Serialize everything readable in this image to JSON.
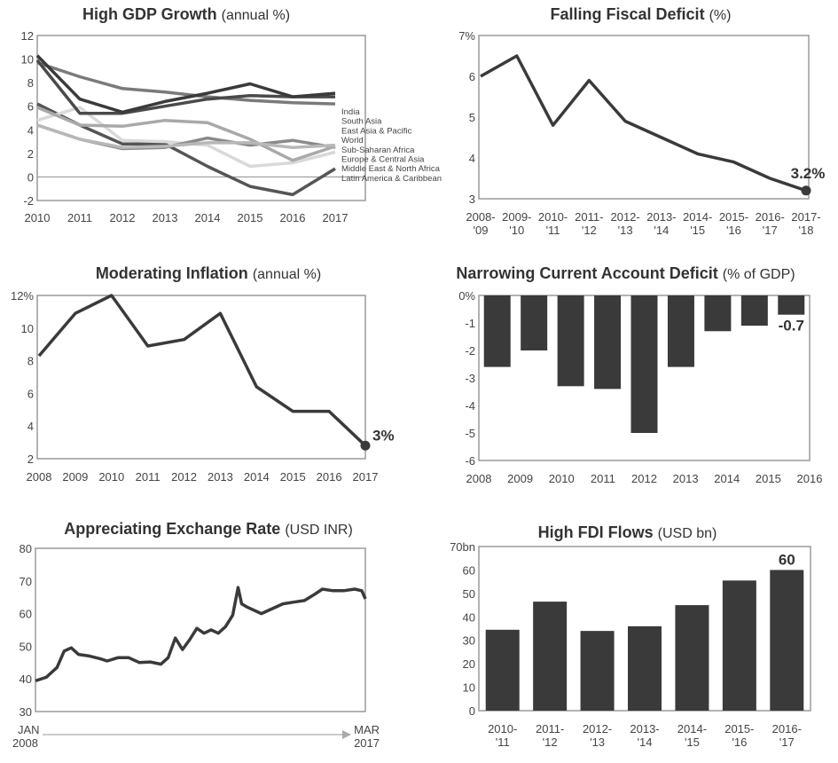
{
  "chart_data": [
    {
      "id": "gdp",
      "type": "line",
      "title": "High GDP Growth",
      "unit": "(annual %)",
      "xlabel": "",
      "ylabel": "",
      "x": [
        "2010",
        "2011",
        "2012",
        "2013",
        "2014",
        "2015",
        "2016",
        "2017"
      ],
      "yticks": [
        "-2",
        "0",
        "2",
        "4",
        "6",
        "8",
        "10",
        "12"
      ],
      "ylim": [
        -2,
        12
      ],
      "legend": "right, inline labels",
      "series": [
        {
          "name": "India",
          "color": "#3a3a3a",
          "values": [
            10.3,
            6.6,
            5.5,
            6.4,
            7.1,
            7.9,
            6.8,
            7.1
          ]
        },
        {
          "name": "South Asia",
          "color": "#4a4a4a",
          "values": [
            9.9,
            5.4,
            5.4,
            6.0,
            6.6,
            6.9,
            6.8,
            6.8
          ]
        },
        {
          "name": "East Asia & Pacific",
          "color": "#7a7a7a",
          "values": [
            9.7,
            8.5,
            7.5,
            7.2,
            6.8,
            6.5,
            6.3,
            6.2
          ]
        },
        {
          "name": "World",
          "color": "#b8b8b8",
          "values": [
            4.4,
            3.2,
            2.5,
            2.6,
            2.9,
            2.9,
            2.5,
            2.7
          ]
        },
        {
          "name": "Sub-Saharan Africa",
          "color": "#a9a9a9",
          "values": [
            5.9,
            4.4,
            4.3,
            4.8,
            4.6,
            3.2,
            1.4,
            2.6
          ]
        },
        {
          "name": "Europe & Central Asia",
          "color": "#8a8a8a",
          "values": [
            4.4,
            3.2,
            2.4,
            2.5,
            3.3,
            2.7,
            3.1,
            2.5
          ]
        },
        {
          "name": "Middle East & North Africa",
          "color": "#d9d9d9",
          "values": [
            4.8,
            5.9,
            3.1,
            3.0,
            2.7,
            0.9,
            1.2,
            2.1
          ]
        },
        {
          "name": "Latin America & Caribbean",
          "color": "#555555",
          "values": [
            6.2,
            4.4,
            2.8,
            2.8,
            0.9,
            -0.8,
            -1.5,
            0.7
          ]
        }
      ]
    },
    {
      "id": "fiscal",
      "type": "line",
      "title": "Falling Fiscal Deficit",
      "unit": "(%)",
      "xlabel": "",
      "ylabel": "",
      "x": [
        "2008-'09",
        "2009-'10",
        "2010-'11",
        "2011-'12",
        "2012-'13",
        "2013-'14",
        "2014-'15",
        "2015-'16",
        "2016-'17",
        "2017-'18"
      ],
      "xtick_lines": [
        [
          "2008-",
          "'09"
        ],
        [
          "2009-",
          "'10"
        ],
        [
          "2010-",
          "'11"
        ],
        [
          "2011-",
          "'12"
        ],
        [
          "2012-",
          "'13"
        ],
        [
          "2013-",
          "'14"
        ],
        [
          "2014-",
          "'15"
        ],
        [
          "2015-",
          "'16"
        ],
        [
          "2016-",
          "'17"
        ],
        [
          "2017-",
          "'18"
        ]
      ],
      "yticks": [
        "3",
        "4",
        "5",
        "6",
        "7%"
      ],
      "ylim": [
        3,
        7
      ],
      "values": [
        6.0,
        6.5,
        4.8,
        5.9,
        4.9,
        4.5,
        4.1,
        3.9,
        3.5,
        3.2
      ],
      "annotation": "3.2%"
    },
    {
      "id": "inflation",
      "type": "line",
      "title": "Moderating Inflation",
      "unit": "(annual %)",
      "xlabel": "",
      "ylabel": "",
      "x": [
        "2008",
        "2009",
        "2010",
        "2011",
        "2012",
        "2013",
        "2014",
        "2015",
        "2016",
        "2017"
      ],
      "yticks": [
        "2",
        "4",
        "6",
        "8",
        "10",
        "12%"
      ],
      "ylim": [
        2,
        12
      ],
      "values": [
        8.3,
        10.9,
        12.0,
        8.9,
        9.3,
        10.9,
        6.4,
        4.9,
        4.9,
        2.8
      ],
      "annotation": "3%"
    },
    {
      "id": "cad",
      "type": "bar",
      "title": "Narrowing Current Account Deficit",
      "unit": "(% of GDP)",
      "xlabel": "",
      "ylabel": "",
      "categories": [
        "2008",
        "2009",
        "2010",
        "2011",
        "2012",
        "2013",
        "2014",
        "2015",
        "2016"
      ],
      "yticks": [
        "-6",
        "-5",
        "-4",
        "-3",
        "-2",
        "-1",
        "0%"
      ],
      "ylim": [
        -6,
        0
      ],
      "values": [
        -2.6,
        -2.0,
        -3.3,
        -3.4,
        -5.0,
        -2.6,
        -1.3,
        -1.1,
        -0.7
      ],
      "annotation": "-0.7"
    },
    {
      "id": "fx",
      "type": "line",
      "title": "Appreciating Exchange Rate",
      "unit": "(USD INR)",
      "xlabel": "",
      "ylabel": "",
      "yticks": [
        "30",
        "40",
        "50",
        "60",
        "70",
        "80"
      ],
      "ylim": [
        30,
        80
      ],
      "x_start": [
        "JAN",
        "2008"
      ],
      "x_end": [
        "MAR",
        "2017"
      ],
      "x": [
        2008.0,
        2008.3,
        2008.6,
        2008.8,
        2009.0,
        2009.2,
        2009.5,
        2009.8,
        2010.0,
        2010.3,
        2010.6,
        2010.9,
        2011.2,
        2011.5,
        2011.7,
        2011.9,
        2012.1,
        2012.3,
        2012.5,
        2012.7,
        2012.9,
        2013.1,
        2013.3,
        2013.5,
        2013.65,
        2013.75,
        2013.9,
        2014.0,
        2014.3,
        2014.6,
        2014.9,
        2015.2,
        2015.5,
        2015.8,
        2016.0,
        2016.3,
        2016.6,
        2016.9,
        2017.1,
        2017.2
      ],
      "values": [
        39.4,
        40.5,
        43.5,
        48.5,
        49.5,
        47.5,
        47.0,
        46.2,
        45.5,
        46.5,
        46.5,
        45.0,
        45.2,
        44.5,
        46.5,
        52.5,
        49.0,
        52.0,
        55.5,
        54.0,
        55.0,
        54.0,
        56.0,
        59.5,
        68.0,
        63.0,
        62.0,
        61.5,
        60.0,
        61.5,
        63.0,
        63.5,
        64.0,
        66.0,
        67.5,
        67.0,
        67.0,
        67.5,
        67.0,
        64.5
      ]
    },
    {
      "id": "fdi",
      "type": "bar",
      "title": "High FDI Flows",
      "unit": "(USD bn)",
      "xlabel": "",
      "ylabel": "",
      "categories": [
        "2010-'11",
        "2011-'12",
        "2012-'13",
        "2013-'14",
        "2014-'15",
        "2015-'16",
        "2016-'17"
      ],
      "xtick_lines": [
        [
          "2010-",
          "'11"
        ],
        [
          "2011-",
          "'12"
        ],
        [
          "2012-",
          "'13"
        ],
        [
          "2013-",
          "'14"
        ],
        [
          "2014-",
          "'15"
        ],
        [
          "2015-",
          "'16"
        ],
        [
          "2016-",
          "'17"
        ]
      ],
      "yticks": [
        "0",
        "10",
        "20",
        "30",
        "40",
        "50",
        "60",
        "70bn"
      ],
      "ylim": [
        0,
        70
      ],
      "values": [
        34.5,
        46.5,
        34.0,
        36.0,
        45.0,
        55.5,
        60.0
      ],
      "annotation": "60"
    }
  ]
}
